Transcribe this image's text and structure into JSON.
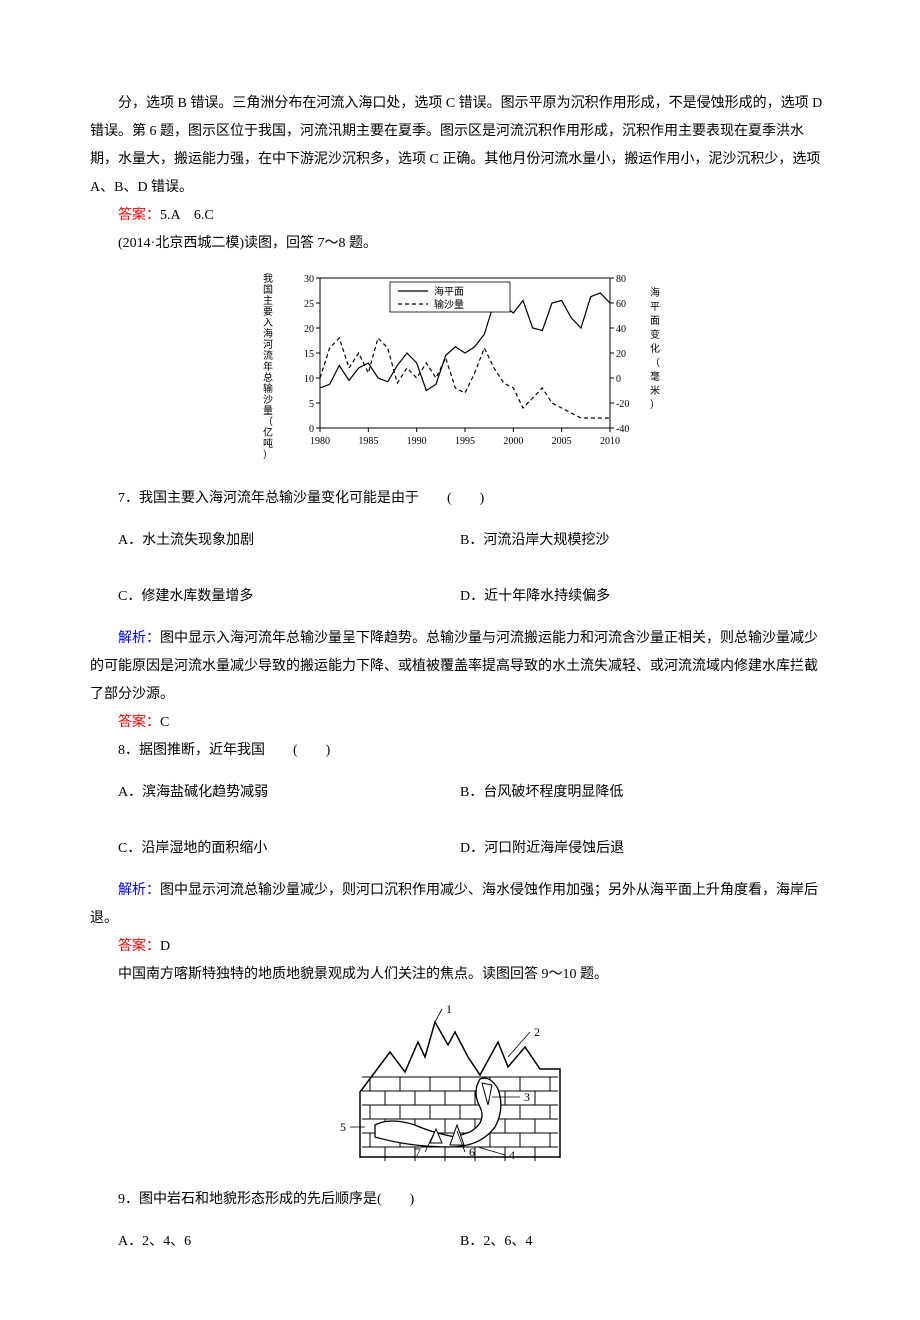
{
  "p1": "分，选项 B 错误。三角洲分布在河流入海口处，选项 C 错误。图示平原为沉积作用形成，不是侵蚀形成的，选项 D 错误。第 6 题，图示区位于我国，河流汛期主要在夏季。图示区是河流沉积作用形成，沉积作用主要表现在夏季洪水期，水量大，搬运能力强，在中下游泥沙沉积多，选项 C 正确。其他月份河流水量小，搬运作用小，泥沙沉积少，选项 A、B、D 错误。",
  "ans56_label": "答案：",
  "ans56_text": "5.A　6.C",
  "source7": "(2014·北京西城二模)读图，回答 7～8 题。",
  "chart": {
    "left_axis_label": "我国主要入海河流年总输沙量（亿吨）",
    "right_axis_label": "海平面变化（毫米）",
    "left_ticks": [
      "0",
      "5",
      "10",
      "15",
      "20",
      "25",
      "30"
    ],
    "right_ticks": [
      "-40",
      "-20",
      "0",
      "20",
      "40",
      "60",
      "80"
    ],
    "x_ticks": [
      "1980",
      "1985",
      "1990",
      "1995",
      "2000",
      "2005",
      "2010"
    ],
    "legend_sea": "海平面",
    "legend_sand": "输沙量",
    "sea_y": [
      -8,
      -5,
      10,
      -2,
      8,
      12,
      0,
      -3,
      10,
      20,
      12,
      -10,
      -5,
      18,
      25,
      20,
      25,
      35,
      60,
      58,
      52,
      62,
      40,
      38,
      60,
      62,
      48,
      40,
      65,
      68,
      60
    ],
    "sand_y": [
      10,
      16,
      18,
      12,
      15,
      11,
      18,
      16,
      9,
      12,
      10,
      13,
      10,
      14,
      8,
      7,
      11,
      16,
      12,
      9,
      8,
      4,
      6,
      8,
      5,
      4,
      3,
      2,
      2,
      2,
      2
    ],
    "left_ylim": [
      0,
      30
    ],
    "right_ylim": [
      -40,
      80
    ],
    "xlim": [
      1980,
      2010
    ],
    "grid_color": "#000000",
    "line_color": "#000000",
    "font_size": 10
  },
  "q7": "7．我国主要入海河流年总输沙量变化可能是由于　　(　　)",
  "q7_A": "A．水土流失现象加剧",
  "q7_B": "B．河流沿岸大规模挖沙",
  "q7_C": "C．修建水库数量增多",
  "q7_D": "D．近十年降水持续偏多",
  "exp7_label": "解析：",
  "exp7_text": "图中显示入海河流年总输沙量呈下降趋势。总输沙量与河流搬运能力和河流含沙量正相关，则总输沙量减少的可能原因是河流水量减少导致的搬运能力下降、或植被覆盖率提高导致的水土流失减轻、或河流流域内修建水库拦截了部分沙源。",
  "ans7_label": "答案：",
  "ans7_text": "C",
  "q8": "8．据图推断，近年我国　　(　　)",
  "q8_A": "A．滨海盐碱化趋势减弱",
  "q8_B": "B．台风破坏程度明显降低",
  "q8_C": "C．沿岸湿地的面积缩小",
  "q8_D": "D．河口附近海岸侵蚀后退",
  "exp8_label": "解析：",
  "exp8_text": "图中显示河流总输沙量减少，则河口沉积作用减少、海水侵蚀作用加强；另外从海平面上升角度看，海岸后退。",
  "ans8_label": "答案：",
  "ans8_text": "D",
  "intro9": "中国南方喀斯特独特的地质地貌景观成为人们关注的焦点。读图回答 9～10 题。",
  "karst": {
    "labels": [
      "1",
      "2",
      "3",
      "4",
      "5",
      "6",
      "7"
    ]
  },
  "q9": "9．图中岩石和地貌形态形成的先后顺序是(　　)",
  "q9_A": "A．2、4、6",
  "q9_B": "B．2、6、4"
}
